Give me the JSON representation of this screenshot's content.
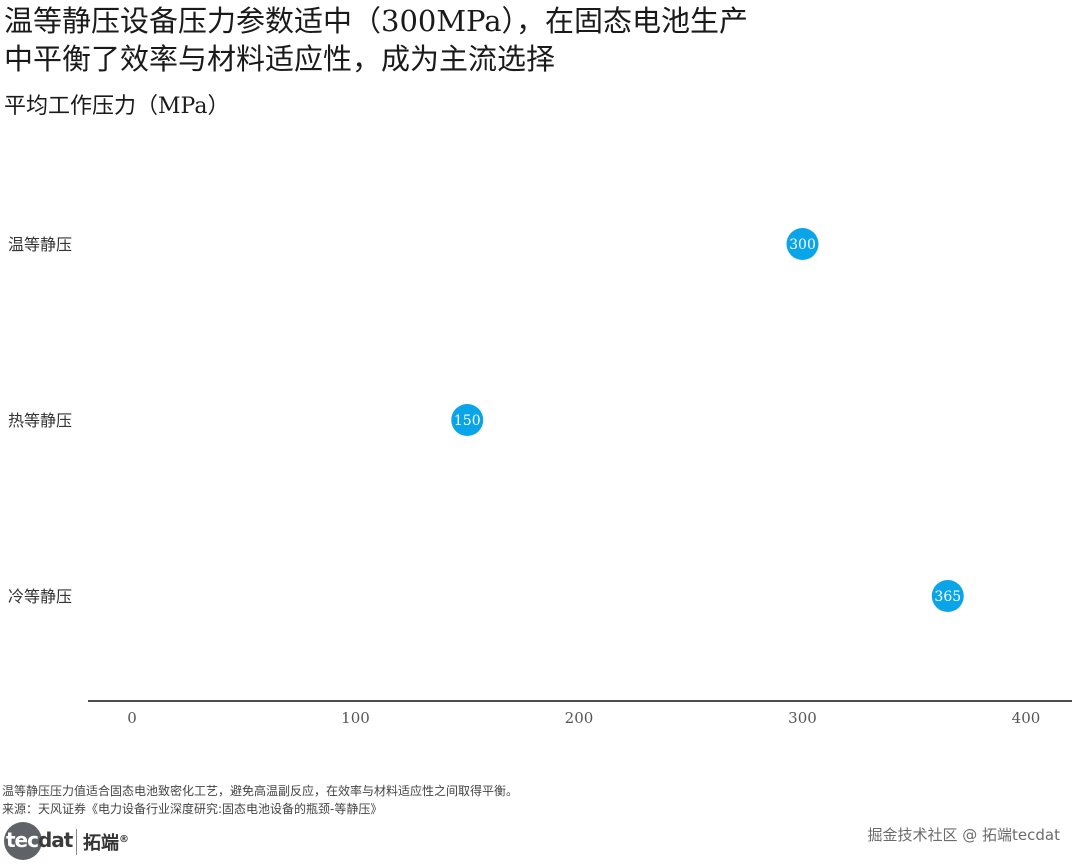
{
  "header": {
    "title": "温等静压设备压力参数适中（300MPa），在固态电池生产中平衡了效率与材料适应性，成为主流选择",
    "subtitle": "平均工作压力（MPa）"
  },
  "chart_data": {
    "type": "scatter",
    "orientation": "horizontal",
    "categories": [
      "温等静压",
      "热等静压",
      "冷等静压"
    ],
    "values": [
      300,
      150,
      365
    ],
    "data_labels": [
      "300",
      "150",
      "365"
    ],
    "xlim": [
      0,
      400
    ],
    "xticks": [
      0,
      100,
      200,
      300,
      400
    ],
    "grid": false,
    "marker_color": "#0aa5e8",
    "label_color": "#ffffff"
  },
  "footer": {
    "note": "温等静压压力值适合固态电池致密化工艺，避免高温副反应，在效率与材料适应性之间取得平衡。",
    "source": "来源：天风证券《电力设备行业深度研究:固态电池设备的瓶颈-等静压》"
  },
  "branding": {
    "logo_text_a": "tec",
    "logo_text_b": "dat",
    "logo_cn": "拓端",
    "logo_mark": "®",
    "watermark": "掘金技术社区 @ 拓端tecdat"
  }
}
